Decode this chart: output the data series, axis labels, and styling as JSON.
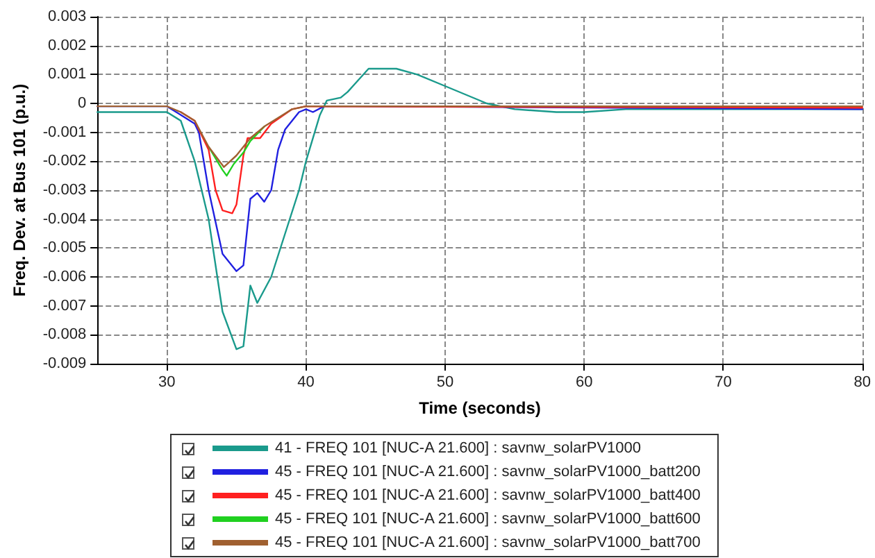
{
  "chart_data": {
    "type": "line",
    "xlabel": "Time (seconds)",
    "ylabel": "Freq. Dev. at Bus 101 (p.u.)",
    "xlim": [
      25,
      80
    ],
    "xticks": [
      30,
      40,
      50,
      60,
      70,
      80
    ],
    "ylim": [
      -0.009,
      0.003
    ],
    "yticks": [
      0.003,
      0.002,
      0.001,
      0,
      -0.001,
      -0.002,
      -0.003,
      -0.004,
      -0.005,
      -0.006,
      -0.007,
      -0.008,
      -0.009
    ],
    "grid": true,
    "legend": "bottom",
    "marker": "none",
    "line_style": "solid",
    "series": [
      {
        "name": "41 - FREQ 101 [NUC-A 21.600] : savnw_solarPV1000",
        "color": "#1a9a8c",
        "x": [
          25,
          30,
          31,
          32,
          33,
          34,
          35,
          35.5,
          36,
          36.5,
          37.5,
          38.5,
          39.5,
          40,
          41,
          41.5,
          42.5,
          43,
          44.5,
          46.5,
          48,
          50,
          53,
          55,
          58,
          60,
          63,
          65,
          80
        ],
        "values": [
          -0.0003,
          -0.0003,
          -0.0006,
          -0.002,
          -0.004,
          -0.0072,
          -0.0085,
          -0.0084,
          -0.0063,
          -0.0069,
          -0.006,
          -0.0045,
          -0.003,
          -0.002,
          -0.0004,
          0.0001,
          0.0002,
          0.0004,
          0.0012,
          0.0012,
          0.001,
          0.0006,
          0,
          -0.0002,
          -0.0003,
          -0.0003,
          -0.0002,
          -0.0002,
          -0.0002
        ]
      },
      {
        "name": "45 - FREQ 101 [NUC-A 21.600] : savnw_solarPV1000_batt200",
        "color": "#2020e0",
        "x": [
          25,
          30,
          32,
          32.3,
          33,
          34,
          35,
          35.5,
          36,
          36.5,
          37,
          37.5,
          38,
          38.5,
          39.5,
          40,
          40.5,
          41.3,
          43.5,
          80
        ],
        "values": [
          -0.0001,
          -0.0001,
          -0.0007,
          -0.001,
          -0.003,
          -0.0052,
          -0.0058,
          -0.0056,
          -0.0033,
          -0.0031,
          -0.0034,
          -0.003,
          -0.0016,
          -0.0009,
          -0.0003,
          -0.0002,
          -0.0003,
          -0.0001,
          -0.0001,
          -0.0002
        ]
      },
      {
        "name": "45 - FREQ 101 [NUC-A 21.600] : savnw_solarPV1000_batt400",
        "color": "#ff2020",
        "x": [
          31,
          32,
          33,
          33.5,
          34,
          34.7,
          35,
          35.5,
          35.8,
          36.7,
          37.5,
          39,
          40,
          80
        ],
        "values": [
          -0.0003,
          -0.0006,
          -0.0016,
          -0.003,
          -0.0037,
          -0.0038,
          -0.0035,
          -0.0018,
          -0.0012,
          -0.0012,
          -0.0007,
          -0.0002,
          -0.0001,
          -0.00015
        ]
      },
      {
        "name": "45 - FREQ 101 [NUC-A 21.600] : savnw_solarPV1000_batt600",
        "color": "#20d020",
        "x": [
          33,
          34,
          34.3,
          34.8,
          35.5,
          36,
          37
        ],
        "values": [
          -0.0015,
          -0.0023,
          -0.0025,
          -0.0021,
          -0.0017,
          -0.0013,
          -0.0008
        ]
      },
      {
        "name": "45 - FREQ 101 [NUC-A 21.600] : savnw_solarPV1000_batt700",
        "color": "#a06030",
        "x": [
          25,
          30,
          31,
          32,
          33,
          34.1,
          35,
          36,
          37,
          38,
          39,
          40,
          80
        ],
        "values": [
          -0.0001,
          -0.0001,
          -0.0003,
          -0.0006,
          -0.0015,
          -0.0022,
          -0.0018,
          -0.0012,
          -0.0008,
          -0.0005,
          -0.0002,
          -0.0001,
          -0.0001
        ]
      }
    ]
  }
}
